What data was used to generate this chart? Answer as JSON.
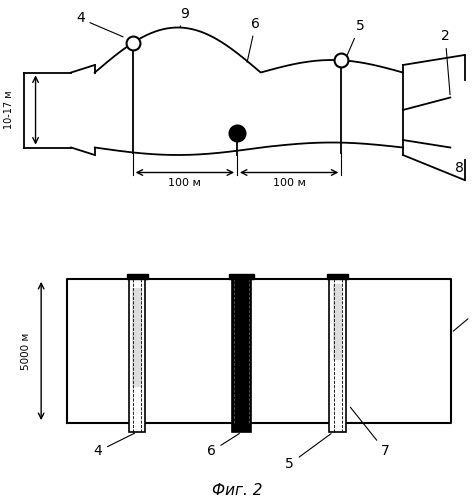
{
  "fig_width": 4.74,
  "fig_height": 5.0,
  "dpi": 100,
  "bg_color": "#ffffff",
  "caption": "Фиг. 2",
  "caption_fontsize": 11,
  "label_fontsize": 10
}
